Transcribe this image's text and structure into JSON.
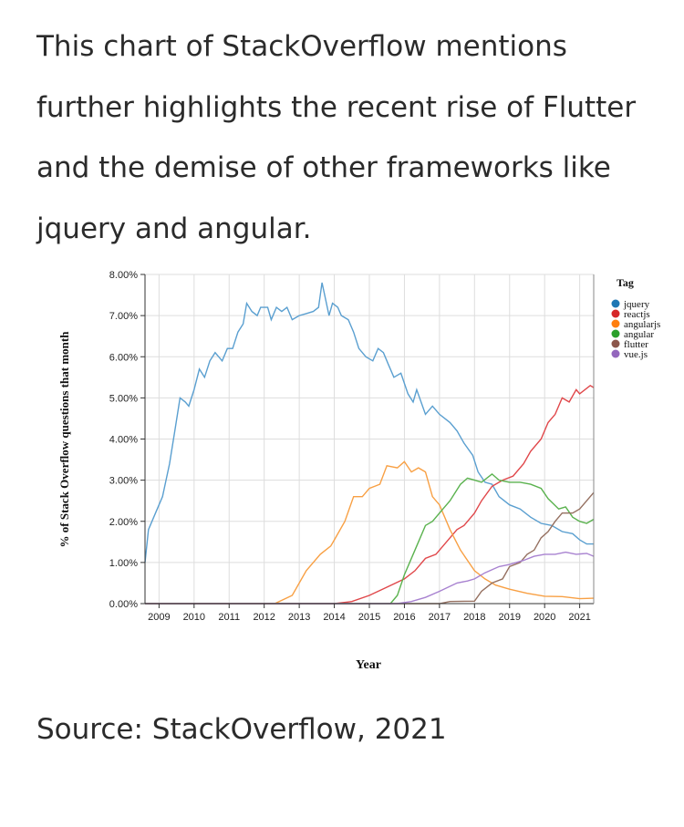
{
  "intro_text": "This chart of StackOverflow mentions further highlights the recent rise of Flutter and the demise of other frameworks like jquery and angular.",
  "source_text": "Source: StackOverflow, 2021",
  "chart_data": {
    "type": "line",
    "title": "",
    "xlabel": "Year",
    "ylabel": "% of Stack Overflow questions that month",
    "xlim": [
      2008.6,
      2021.4
    ],
    "ylim": [
      0,
      8
    ],
    "x_ticks": [
      "2009",
      "2010",
      "2011",
      "2012",
      "2013",
      "2014",
      "2015",
      "2016",
      "2017",
      "2018",
      "2019",
      "2020",
      "2021"
    ],
    "y_ticks": [
      "0.00%",
      "1.00%",
      "2.00%",
      "3.00%",
      "4.00%",
      "5.00%",
      "6.00%",
      "7.00%",
      "8.00%"
    ],
    "grid": true,
    "legend": {
      "title": "Tag",
      "placement": "top-right"
    },
    "series": [
      {
        "name": "jquery",
        "color": "#1f77b4",
        "line_color": "#5a9fd0",
        "points": [
          [
            2008.6,
            1.0
          ],
          [
            2008.7,
            1.8
          ],
          [
            2008.9,
            2.2
          ],
          [
            2009.1,
            2.6
          ],
          [
            2009.3,
            3.4
          ],
          [
            2009.45,
            4.2
          ],
          [
            2009.6,
            5.0
          ],
          [
            2009.75,
            4.9
          ],
          [
            2009.85,
            4.8
          ],
          [
            2010.0,
            5.2
          ],
          [
            2010.15,
            5.7
          ],
          [
            2010.3,
            5.5
          ],
          [
            2010.45,
            5.9
          ],
          [
            2010.6,
            6.1
          ],
          [
            2010.8,
            5.9
          ],
          [
            2010.95,
            6.2
          ],
          [
            2011.1,
            6.2
          ],
          [
            2011.25,
            6.6
          ],
          [
            2011.4,
            6.8
          ],
          [
            2011.5,
            7.3
          ],
          [
            2011.65,
            7.1
          ],
          [
            2011.8,
            7.0
          ],
          [
            2011.9,
            7.2
          ],
          [
            2012.1,
            7.2
          ],
          [
            2012.2,
            6.9
          ],
          [
            2012.35,
            7.2
          ],
          [
            2012.5,
            7.1
          ],
          [
            2012.65,
            7.2
          ],
          [
            2012.8,
            6.9
          ],
          [
            2013.0,
            7.0
          ],
          [
            2013.2,
            7.05
          ],
          [
            2013.4,
            7.1
          ],
          [
            2013.55,
            7.2
          ],
          [
            2013.65,
            7.8
          ],
          [
            2013.85,
            7.0
          ],
          [
            2013.95,
            7.3
          ],
          [
            2014.1,
            7.2
          ],
          [
            2014.2,
            7.0
          ],
          [
            2014.4,
            6.9
          ],
          [
            2014.55,
            6.6
          ],
          [
            2014.7,
            6.2
          ],
          [
            2014.9,
            6.0
          ],
          [
            2015.1,
            5.9
          ],
          [
            2015.25,
            6.2
          ],
          [
            2015.4,
            6.1
          ],
          [
            2015.55,
            5.8
          ],
          [
            2015.7,
            5.5
          ],
          [
            2015.9,
            5.6
          ],
          [
            2016.1,
            5.1
          ],
          [
            2016.25,
            4.9
          ],
          [
            2016.35,
            5.2
          ],
          [
            2016.6,
            4.6
          ],
          [
            2016.8,
            4.8
          ],
          [
            2017.0,
            4.6
          ],
          [
            2017.3,
            4.4
          ],
          [
            2017.5,
            4.2
          ],
          [
            2017.7,
            3.9
          ],
          [
            2017.95,
            3.6
          ],
          [
            2018.1,
            3.2
          ],
          [
            2018.3,
            2.95
          ],
          [
            2018.5,
            2.9
          ],
          [
            2018.7,
            2.6
          ],
          [
            2019.0,
            2.4
          ],
          [
            2019.3,
            2.3
          ],
          [
            2019.6,
            2.1
          ],
          [
            2019.9,
            1.95
          ],
          [
            2020.2,
            1.9
          ],
          [
            2020.5,
            1.75
          ],
          [
            2020.8,
            1.7
          ],
          [
            2021.0,
            1.55
          ],
          [
            2021.2,
            1.45
          ],
          [
            2021.4,
            1.45
          ]
        ]
      },
      {
        "name": "reactjs",
        "color": "#d62728",
        "line_color": "#e0474a",
        "points": [
          [
            2008.6,
            0
          ],
          [
            2014.0,
            0
          ],
          [
            2014.5,
            0.05
          ],
          [
            2015.0,
            0.2
          ],
          [
            2015.5,
            0.4
          ],
          [
            2016.0,
            0.6
          ],
          [
            2016.3,
            0.8
          ],
          [
            2016.6,
            1.1
          ],
          [
            2016.9,
            1.2
          ],
          [
            2017.2,
            1.5
          ],
          [
            2017.5,
            1.8
          ],
          [
            2017.7,
            1.9
          ],
          [
            2018.0,
            2.2
          ],
          [
            2018.2,
            2.5
          ],
          [
            2018.5,
            2.85
          ],
          [
            2018.8,
            3.0
          ],
          [
            2019.1,
            3.1
          ],
          [
            2019.4,
            3.4
          ],
          [
            2019.6,
            3.7
          ],
          [
            2019.9,
            4.0
          ],
          [
            2020.1,
            4.4
          ],
          [
            2020.3,
            4.6
          ],
          [
            2020.5,
            5.0
          ],
          [
            2020.7,
            4.9
          ],
          [
            2020.9,
            5.2
          ],
          [
            2021.0,
            5.1
          ],
          [
            2021.3,
            5.3
          ],
          [
            2021.4,
            5.25
          ]
        ]
      },
      {
        "name": "angularjs",
        "color": "#ff7f0e",
        "line_color": "#f8a044",
        "points": [
          [
            2008.6,
            0
          ],
          [
            2012.3,
            0
          ],
          [
            2012.8,
            0.2
          ],
          [
            2013.2,
            0.8
          ],
          [
            2013.6,
            1.2
          ],
          [
            2013.9,
            1.4
          ],
          [
            2014.0,
            1.55
          ],
          [
            2014.3,
            2.0
          ],
          [
            2014.55,
            2.6
          ],
          [
            2014.8,
            2.6
          ],
          [
            2015.0,
            2.8
          ],
          [
            2015.3,
            2.9
          ],
          [
            2015.5,
            3.35
          ],
          [
            2015.8,
            3.3
          ],
          [
            2016.0,
            3.45
          ],
          [
            2016.2,
            3.2
          ],
          [
            2016.4,
            3.3
          ],
          [
            2016.6,
            3.2
          ],
          [
            2016.8,
            2.6
          ],
          [
            2017.0,
            2.4
          ],
          [
            2017.3,
            1.8
          ],
          [
            2017.6,
            1.3
          ],
          [
            2018.0,
            0.8
          ],
          [
            2018.3,
            0.6
          ],
          [
            2018.6,
            0.45
          ],
          [
            2019.0,
            0.35
          ],
          [
            2019.5,
            0.25
          ],
          [
            2020.0,
            0.18
          ],
          [
            2020.5,
            0.17
          ],
          [
            2021.0,
            0.12
          ],
          [
            2021.4,
            0.13
          ]
        ]
      },
      {
        "name": "angular",
        "color": "#2ca02c",
        "line_color": "#5ab24e",
        "points": [
          [
            2008.6,
            0
          ],
          [
            2015.6,
            0
          ],
          [
            2015.8,
            0.2
          ],
          [
            2016.0,
            0.7
          ],
          [
            2016.3,
            1.3
          ],
          [
            2016.6,
            1.9
          ],
          [
            2016.8,
            2.0
          ],
          [
            2017.1,
            2.3
          ],
          [
            2017.3,
            2.5
          ],
          [
            2017.6,
            2.9
          ],
          [
            2017.8,
            3.05
          ],
          [
            2018.0,
            3.0
          ],
          [
            2018.2,
            2.95
          ],
          [
            2018.5,
            3.15
          ],
          [
            2018.7,
            3.0
          ],
          [
            2019.0,
            2.95
          ],
          [
            2019.3,
            2.95
          ],
          [
            2019.6,
            2.9
          ],
          [
            2019.9,
            2.8
          ],
          [
            2020.1,
            2.55
          ],
          [
            2020.4,
            2.3
          ],
          [
            2020.6,
            2.35
          ],
          [
            2020.8,
            2.1
          ],
          [
            2021.0,
            2.0
          ],
          [
            2021.2,
            1.95
          ],
          [
            2021.4,
            2.05
          ]
        ]
      },
      {
        "name": "flutter",
        "color": "#8c564b",
        "line_color": "#957060",
        "points": [
          [
            2008.6,
            0
          ],
          [
            2017.0,
            0
          ],
          [
            2017.3,
            0.05
          ],
          [
            2018.0,
            0.06
          ],
          [
            2018.2,
            0.3
          ],
          [
            2018.5,
            0.5
          ],
          [
            2018.8,
            0.6
          ],
          [
            2019.0,
            0.9
          ],
          [
            2019.3,
            1.0
          ],
          [
            2019.5,
            1.2
          ],
          [
            2019.7,
            1.3
          ],
          [
            2019.9,
            1.6
          ],
          [
            2020.1,
            1.75
          ],
          [
            2020.3,
            2.0
          ],
          [
            2020.5,
            2.2
          ],
          [
            2020.8,
            2.2
          ],
          [
            2021.0,
            2.3
          ],
          [
            2021.2,
            2.5
          ],
          [
            2021.4,
            2.7
          ]
        ]
      },
      {
        "name": "vue.js",
        "color": "#9467bd",
        "line_color": "#a882d0",
        "points": [
          [
            2008.6,
            0
          ],
          [
            2015.8,
            0
          ],
          [
            2016.2,
            0.05
          ],
          [
            2016.6,
            0.15
          ],
          [
            2017.0,
            0.3
          ],
          [
            2017.5,
            0.5
          ],
          [
            2017.8,
            0.55
          ],
          [
            2018.0,
            0.6
          ],
          [
            2018.3,
            0.75
          ],
          [
            2018.7,
            0.9
          ],
          [
            2019.0,
            0.95
          ],
          [
            2019.4,
            1.05
          ],
          [
            2019.7,
            1.15
          ],
          [
            2020.0,
            1.2
          ],
          [
            2020.3,
            1.2
          ],
          [
            2020.6,
            1.25
          ],
          [
            2020.9,
            1.2
          ],
          [
            2021.2,
            1.22
          ],
          [
            2021.4,
            1.15
          ]
        ]
      }
    ]
  }
}
